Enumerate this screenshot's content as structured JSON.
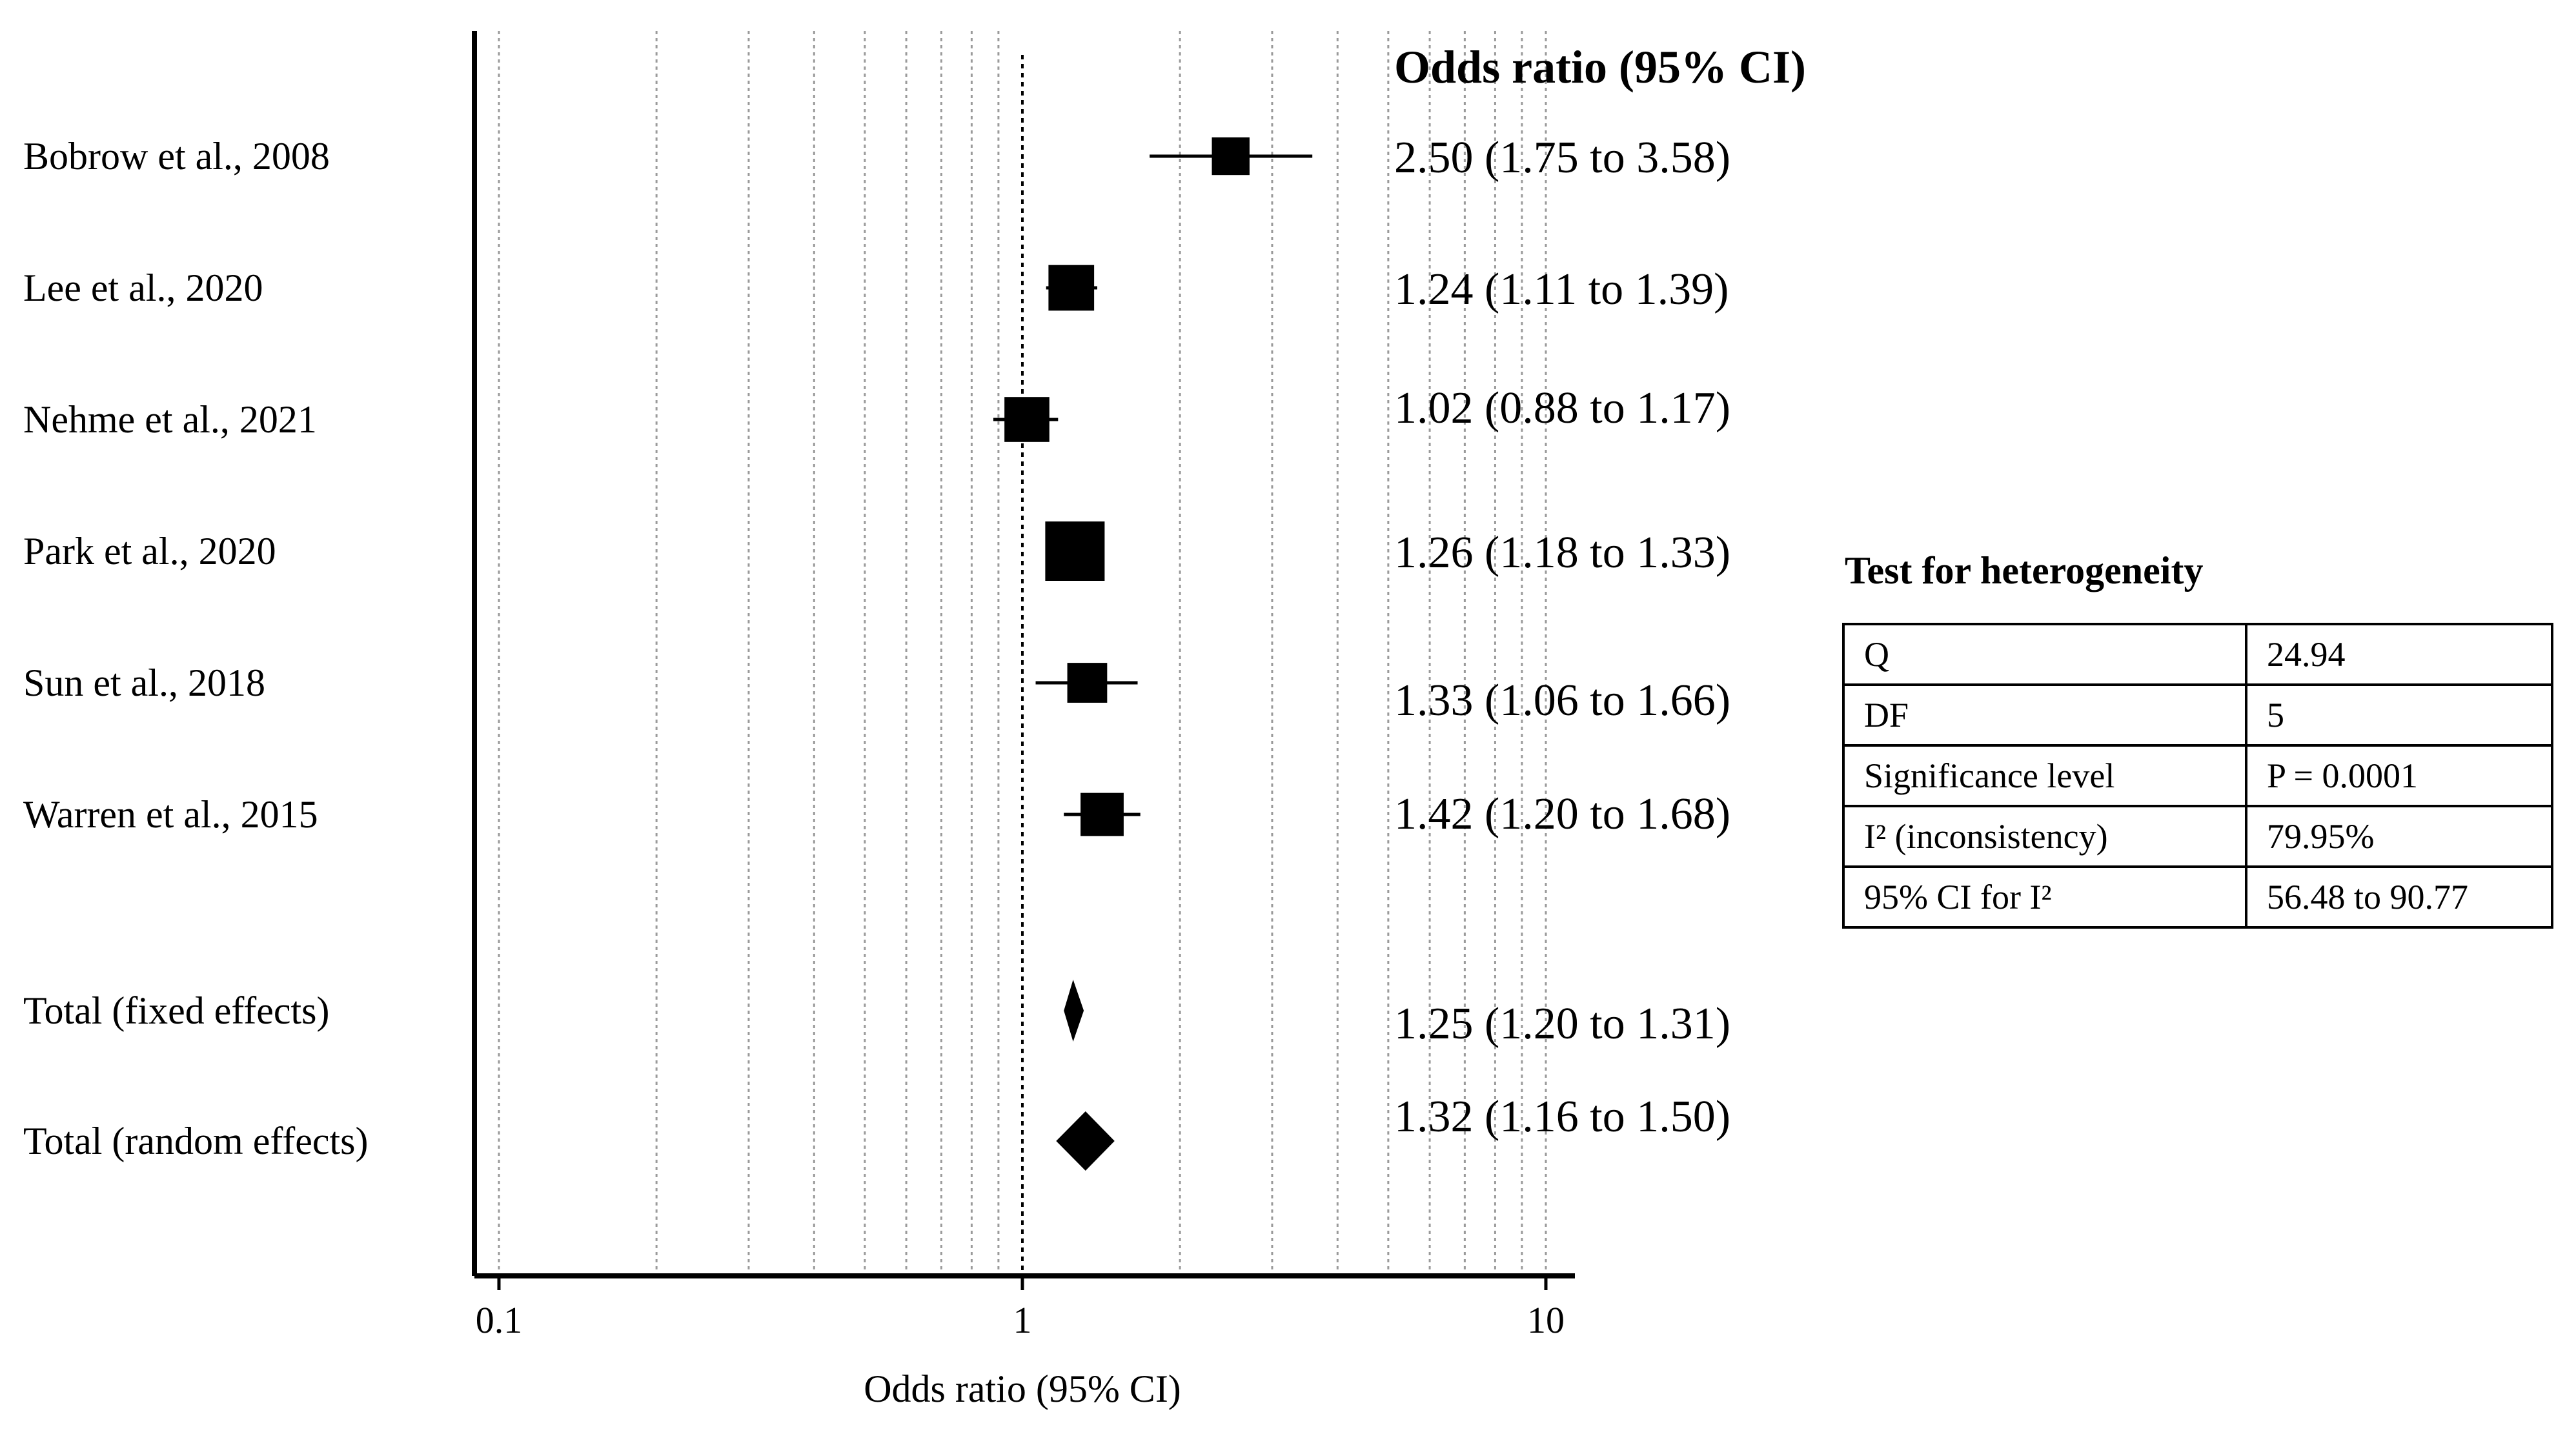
{
  "chart_data": {
    "type": "forest",
    "xscale": "log",
    "xlim": [
      0.095,
      10.5
    ],
    "xlabel": "Odds ratio (95% CI)",
    "column_header": "Odds ratio (95% CI)",
    "ticks": [
      {
        "value": 0.1,
        "label": "0.1"
      },
      {
        "value": 1,
        "label": "1"
      },
      {
        "value": 10,
        "label": "10"
      }
    ],
    "gridlines": [
      0.1,
      0.2,
      0.3,
      0.4,
      0.5,
      0.6,
      0.7,
      0.8,
      0.9,
      1,
      2,
      3,
      4,
      5,
      6,
      7,
      8,
      9,
      10
    ],
    "reference_line": 1,
    "studies": [
      {
        "label": "Bobrow et al., 2008",
        "or": 2.5,
        "lo": 1.75,
        "hi": 3.58,
        "ci_text": "2.50 (1.75 to 3.58)",
        "weight": 0.4
      },
      {
        "label": "Lee et al., 2020",
        "or": 1.24,
        "lo": 1.11,
        "hi": 1.39,
        "ci_text": "1.24 (1.11 to 1.39)",
        "weight": 0.62
      },
      {
        "label": "Nehme et al., 2021",
        "or": 1.02,
        "lo": 0.88,
        "hi": 1.17,
        "ci_text": "1.02 (0.88 to 1.17)",
        "weight": 0.6
      },
      {
        "label": "Park et al., 2020",
        "or": 1.26,
        "lo": 1.18,
        "hi": 1.33,
        "ci_text": "1.26 (1.18 to 1.33)",
        "weight": 1.0
      },
      {
        "label": "Sun et al., 2018",
        "or": 1.33,
        "lo": 1.06,
        "hi": 1.66,
        "ci_text": "1.33 (1.06 to 1.66)",
        "weight": 0.46
      },
      {
        "label": "Warren et al., 2015",
        "or": 1.42,
        "lo": 1.2,
        "hi": 1.68,
        "ci_text": "1.42 (1.20 to 1.68)",
        "weight": 0.55
      }
    ],
    "totals": [
      {
        "label": "Total (fixed effects)",
        "or": 1.25,
        "lo": 1.2,
        "hi": 1.31,
        "ci_text": "1.25 (1.20 to 1.31)"
      },
      {
        "label": "Total (random effects)",
        "or": 1.32,
        "lo": 1.16,
        "hi": 1.5,
        "ci_text": "1.32 (1.16 to 1.50)"
      }
    ]
  },
  "heterogeneity": {
    "title": "Test for heterogeneity",
    "rows": [
      {
        "key": "Q",
        "value": "24.94"
      },
      {
        "key": "DF",
        "value": "5"
      },
      {
        "key": "Significance level",
        "value": "P = 0.0001"
      },
      {
        "key": "I² (inconsistency)",
        "value": "79.95%"
      },
      {
        "key": "95% CI for I²",
        "value": "56.48 to 90.77"
      }
    ]
  }
}
